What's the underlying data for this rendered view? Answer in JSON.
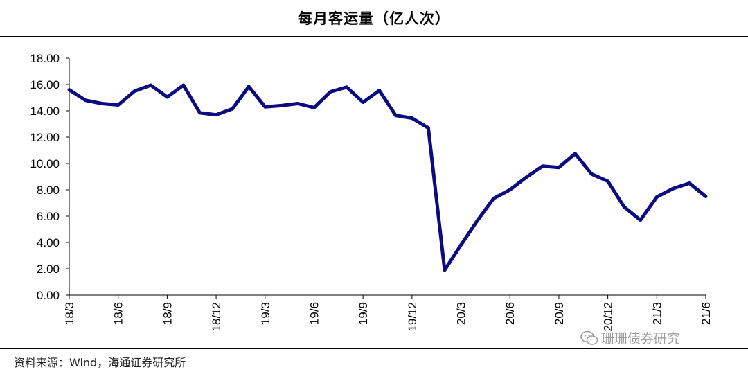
{
  "title": "每月客运量（亿人次）",
  "source": "资料来源：Wind，海通证券研究所",
  "watermark": {
    "text": "珊珊债券研究",
    "icon": "wechat-icon"
  },
  "colors": {
    "line": "#0b0c80",
    "axis": "#000000",
    "text": "#000000"
  },
  "chart_data": {
    "type": "line",
    "title": "每月客运量（亿人次）",
    "xlabel": "",
    "ylabel": "",
    "ylim": [
      0,
      18
    ],
    "yticks": [
      "0.00",
      "2.00",
      "4.00",
      "6.00",
      "8.00",
      "10.00",
      "12.00",
      "14.00",
      "16.00",
      "18.00"
    ],
    "grid": false,
    "legend": "none",
    "x": [
      "18/3",
      "18/4",
      "18/5",
      "18/6",
      "18/7",
      "18/8",
      "18/9",
      "18/10",
      "18/11",
      "18/12",
      "19/1",
      "19/2",
      "19/3",
      "19/4",
      "19/5",
      "19/6",
      "19/7",
      "19/8",
      "19/9",
      "19/10",
      "19/11",
      "19/12",
      "20/1",
      "20/2",
      "20/3",
      "20/4",
      "20/5",
      "20/6",
      "20/7",
      "20/8",
      "20/9",
      "20/10",
      "20/11",
      "20/12",
      "21/1",
      "21/2",
      "21/3",
      "21/4",
      "21/5",
      "21/6"
    ],
    "xtick_labels": [
      "18/3",
      "18/6",
      "18/9",
      "18/12",
      "19/3",
      "19/6",
      "19/9",
      "19/12",
      "20/3",
      "20/6",
      "20/9",
      "20/12",
      "21/3",
      "21/6"
    ],
    "series": [
      {
        "values": [
          15.6,
          14.8,
          14.55,
          14.45,
          15.5,
          15.95,
          15.05,
          15.95,
          13.85,
          13.7,
          14.15,
          15.85,
          14.3,
          14.4,
          14.55,
          14.25,
          15.45,
          15.8,
          14.65,
          15.55,
          13.65,
          13.45,
          12.7,
          1.9,
          3.8,
          5.65,
          7.35,
          8.0,
          8.95,
          9.8,
          9.7,
          10.75,
          9.2,
          8.65,
          6.7,
          5.7,
          7.45,
          8.1,
          8.5,
          7.5
        ]
      }
    ]
  }
}
